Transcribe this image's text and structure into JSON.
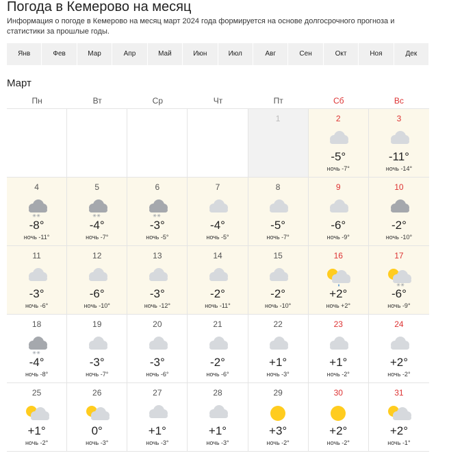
{
  "header": {
    "title": "Погода в Кемерово на месяц",
    "description": "Информация о погоде в Кемерово на месяц март 2024 года формируется на основе долгосрочного прогноза и статистики за прошлые годы."
  },
  "months": [
    "Янв",
    "Фев",
    "Мар",
    "Апр",
    "Май",
    "Июн",
    "Июл",
    "Авг",
    "Сен",
    "Окт",
    "Ноя",
    "Дек"
  ],
  "calendar": {
    "month": "Март",
    "weekdays": [
      "Пн",
      "Вт",
      "Ср",
      "Чт",
      "Пт",
      "Сб",
      "Вс"
    ],
    "days": [
      {
        "day": "1",
        "bg": "#f2f2f2"
      },
      {
        "day": "2",
        "temp": "-5°",
        "night": "ночь -7°",
        "icon": "cloud",
        "bg": "#fcf8ea"
      },
      {
        "day": "3",
        "temp": "-11°",
        "night": "ночь -14°",
        "icon": "cloud",
        "bg": "#fcf8ea"
      },
      {
        "day": "4",
        "temp": "-8°",
        "night": "ночь -11°",
        "icon": "dark-snow",
        "bg": "#fcf8ea"
      },
      {
        "day": "5",
        "temp": "-4°",
        "night": "ночь -7°",
        "icon": "dark-snow",
        "bg": "#fcf8ea"
      },
      {
        "day": "6",
        "temp": "-3°",
        "night": "ночь -5°",
        "icon": "dark-snow",
        "bg": "#fcf8ea"
      },
      {
        "day": "7",
        "temp": "-4°",
        "night": "ночь -5°",
        "icon": "cloud",
        "bg": "#fcf8ea"
      },
      {
        "day": "8",
        "temp": "-5°",
        "night": "ночь -7°",
        "icon": "cloud",
        "bg": "#fcf8ea"
      },
      {
        "day": "9",
        "temp": "-6°",
        "night": "ночь -9°",
        "icon": "cloud",
        "bg": "#fcf8ea"
      },
      {
        "day": "10",
        "temp": "-2°",
        "night": "ночь -10°",
        "icon": "dark",
        "bg": "#fcf8ea"
      },
      {
        "day": "11",
        "temp": "-3°",
        "night": "ночь -6°",
        "icon": "cloud",
        "bg": "#fcf8ea"
      },
      {
        "day": "12",
        "temp": "-6°",
        "night": "ночь -10°",
        "icon": "cloud",
        "bg": "#fcf8ea"
      },
      {
        "day": "13",
        "temp": "-3°",
        "night": "ночь -12°",
        "icon": "cloud",
        "bg": "#fcf8ea"
      },
      {
        "day": "14",
        "temp": "-2°",
        "night": "ночь -11°",
        "icon": "cloud",
        "bg": "#fcf8ea"
      },
      {
        "day": "15",
        "temp": "-2°",
        "night": "ночь -10°",
        "icon": "cloud",
        "bg": "#fcf8ea"
      },
      {
        "day": "16",
        "temp": "+2°",
        "night": "ночь +2°",
        "icon": "sun-cloud-rain",
        "bg": "#fcf8ea"
      },
      {
        "day": "17",
        "temp": "-6°",
        "night": "ночь -9°",
        "icon": "sun-cloud-snow",
        "bg": "#fcf8ea"
      },
      {
        "day": "18",
        "temp": "-4°",
        "night": "ночь -8°",
        "icon": "dark-snow",
        "bg": "#ffffff"
      },
      {
        "day": "19",
        "temp": "-3°",
        "night": "ночь -7°",
        "icon": "cloud",
        "bg": "#ffffff"
      },
      {
        "day": "20",
        "temp": "-3°",
        "night": "ночь -6°",
        "icon": "cloud",
        "bg": "#ffffff"
      },
      {
        "day": "21",
        "temp": "-2°",
        "night": "ночь -6°",
        "icon": "cloud",
        "bg": "#ffffff"
      },
      {
        "day": "22",
        "temp": "+1°",
        "night": "ночь -3°",
        "icon": "cloud",
        "bg": "#ffffff"
      },
      {
        "day": "23",
        "temp": "+1°",
        "night": "ночь -2°",
        "icon": "cloud",
        "bg": "#ffffff"
      },
      {
        "day": "24",
        "temp": "+2°",
        "night": "ночь -2°",
        "icon": "cloud",
        "bg": "#ffffff"
      },
      {
        "day": "25",
        "temp": "+1°",
        "night": "ночь -2°",
        "icon": "sun-cloud",
        "bg": "#ffffff"
      },
      {
        "day": "26",
        "temp": "0°",
        "night": "ночь -3°",
        "icon": "sun-cloud",
        "bg": "#ffffff"
      },
      {
        "day": "27",
        "temp": "+1°",
        "night": "ночь -3°",
        "icon": "cloud",
        "bg": "#ffffff"
      },
      {
        "day": "28",
        "temp": "+1°",
        "night": "ночь -3°",
        "icon": "cloud",
        "bg": "#ffffff"
      },
      {
        "day": "29",
        "temp": "+3°",
        "night": "ночь -2°",
        "icon": "sun",
        "bg": "#ffffff"
      },
      {
        "day": "30",
        "temp": "+2°",
        "night": "ночь -2°",
        "icon": "sun",
        "bg": "#ffffff"
      },
      {
        "day": "31",
        "temp": "+2°",
        "night": "ночь -1°",
        "icon": "sun-cloud",
        "bg": "#ffffff"
      }
    ]
  }
}
